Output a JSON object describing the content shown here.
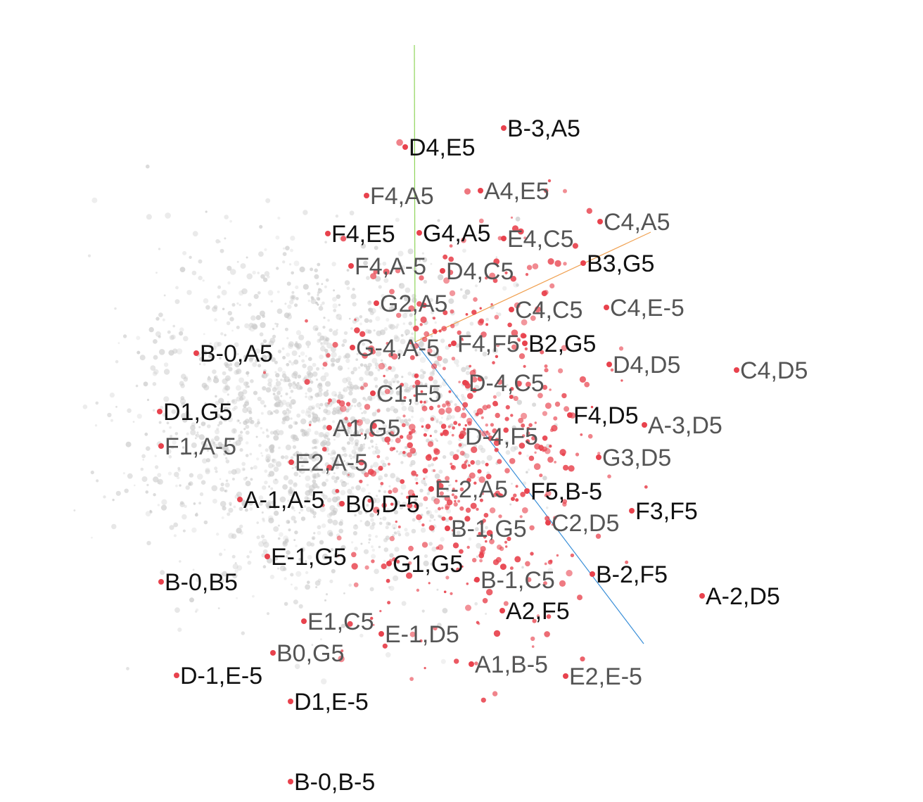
{
  "colors": {
    "background": "#ffffff",
    "highlight": "#e8424d",
    "background_point": "#c8c8c8",
    "axis_x": "#f0a050",
    "axis_y": "#8fd45a",
    "axis_z": "#3a8fd8",
    "label_dark": "#111111",
    "label_mid": "#555555"
  },
  "chart_data": {
    "type": "scatter",
    "title": "",
    "xlabel": "",
    "ylabel": "",
    "grid": false,
    "legend": "none",
    "point_labels": [
      "B-3,A5",
      "D4,E5",
      "F4,A5",
      "A4,E5",
      "F4,E5",
      "G4,A5",
      "E4,C5",
      "C4,A5",
      "F4,A-5",
      "D4,C5",
      "B3,G5",
      "G2,A5",
      "C4,C5",
      "C4,E-5",
      "B-0,A5",
      "G-4,A-5",
      "F4,F5",
      "B2,G5",
      "D4,D5",
      "C4,D5",
      "C1,F5",
      "D-4,C5",
      "D1,G5",
      "F4,D5",
      "A-3,D5",
      "A1,G5",
      "D-4,F5",
      "F1,A-5",
      "E2,A-5",
      "G3,D5",
      "E-2,A5",
      "F5,B-5",
      "A-1,A-5",
      "B0,D-5",
      "F3,F5",
      "C2,D5",
      "B-1,G5",
      "E-1,G5",
      "G1,G5",
      "B-2,F5",
      "B-0,B5",
      "B-1,C5",
      "A-2,D5",
      "A2,F5",
      "E1,C5",
      "E-1,D5",
      "B0,G5",
      "A1,B-5",
      "D-1,E-5",
      "E2,E-5",
      "D1,E-5",
      "B-0,B-5"
    ]
  }
}
